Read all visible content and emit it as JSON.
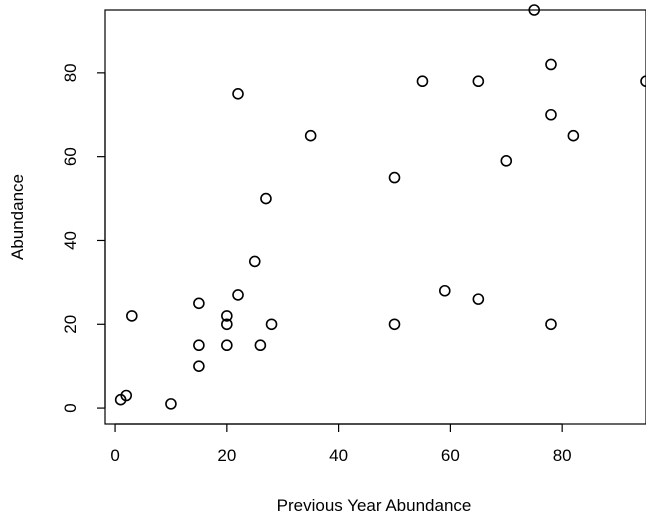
{
  "chart_data": {
    "type": "scatter",
    "title": "",
    "xlabel": "Previous Year Abundance",
    "ylabel": "Abundance",
    "xlim": [
      -1.8,
      95
    ],
    "ylim": [
      -3.8,
      95
    ],
    "x_ticks": [
      0,
      20,
      40,
      60,
      80
    ],
    "y_ticks": [
      0,
      20,
      40,
      60,
      80
    ],
    "x_tick_labels": [
      "0",
      "20",
      "40",
      "60",
      "80"
    ],
    "y_tick_labels": [
      "0",
      "20",
      "40",
      "60",
      "80"
    ],
    "grid": false,
    "series": [
      {
        "points": [
          {
            "x": 1,
            "y": 2
          },
          {
            "x": 2,
            "y": 3
          },
          {
            "x": 3,
            "y": 22
          },
          {
            "x": 10,
            "y": 1
          },
          {
            "x": 15,
            "y": 10
          },
          {
            "x": 15,
            "y": 15
          },
          {
            "x": 15,
            "y": 25
          },
          {
            "x": 20,
            "y": 15
          },
          {
            "x": 20,
            "y": 20
          },
          {
            "x": 20,
            "y": 22
          },
          {
            "x": 22,
            "y": 27
          },
          {
            "x": 22,
            "y": 75
          },
          {
            "x": 25,
            "y": 35
          },
          {
            "x": 26,
            "y": 15
          },
          {
            "x": 27,
            "y": 50
          },
          {
            "x": 28,
            "y": 20
          },
          {
            "x": 35,
            "y": 65
          },
          {
            "x": 50,
            "y": 20
          },
          {
            "x": 50,
            "y": 55
          },
          {
            "x": 55,
            "y": 78
          },
          {
            "x": 59,
            "y": 28
          },
          {
            "x": 65,
            "y": 26
          },
          {
            "x": 65,
            "y": 78
          },
          {
            "x": 70,
            "y": 59
          },
          {
            "x": 75,
            "y": 95
          },
          {
            "x": 78,
            "y": 20
          },
          {
            "x": 78,
            "y": 70
          },
          {
            "x": 78,
            "y": 82
          },
          {
            "x": 82,
            "y": 65
          },
          {
            "x": 95,
            "y": 78
          }
        ]
      }
    ]
  }
}
